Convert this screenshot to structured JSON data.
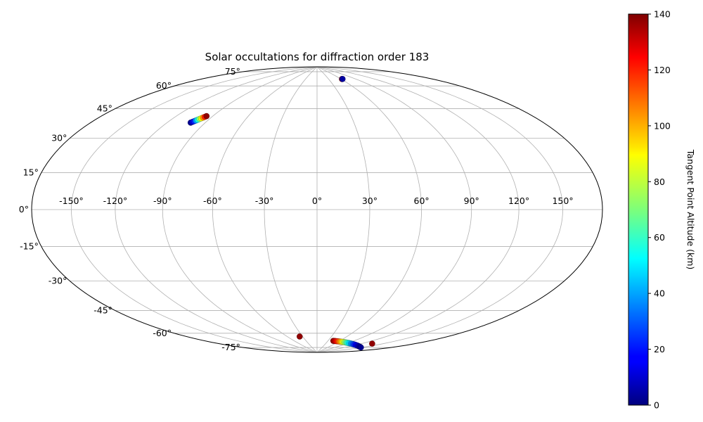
{
  "chart_data": {
    "type": "scatter",
    "projection": "hammer",
    "title": "Solar occultations for diffraction order 183",
    "lon_ticks": [
      -150,
      -120,
      -90,
      -60,
      -30,
      0,
      30,
      60,
      90,
      120,
      150
    ],
    "lon_tick_labels": [
      "-150°",
      "-120°",
      "-90°",
      "-60°",
      "-30°",
      "0°",
      "30°",
      "60°",
      "90°",
      "120°",
      "150°"
    ],
    "lat_ticks": [
      -75,
      -60,
      -45,
      -30,
      -15,
      0,
      15,
      30,
      45,
      60,
      75
    ],
    "lat_tick_labels": [
      "-75°",
      "-60°",
      "-45°",
      "-30°",
      "-15°",
      "0°",
      "15°",
      "30°",
      "45°",
      "60°",
      "75°"
    ],
    "grid": true,
    "colorbar": {
      "label": "Tangent Point Altitude (km)",
      "colormap": "jet",
      "range": [
        0,
        140
      ],
      "ticks": [
        0,
        20,
        40,
        60,
        80,
        100,
        120,
        140
      ],
      "tick_labels": [
        "0",
        "20",
        "40",
        "60",
        "80",
        "100",
        "120",
        "140"
      ],
      "placement": "right"
    },
    "series": [
      {
        "lon": [
          -101.5,
          -100.8,
          -100.1,
          -99.4,
          -98.7,
          -98.0,
          -97.3,
          -96.6,
          -95.9,
          -95.2
        ],
        "lat": [
          46.8,
          47.3,
          47.8,
          48.3,
          48.8,
          49.3,
          49.8,
          50.3,
          50.8,
          51.3
        ],
        "alt": [
          2,
          10,
          22,
          38,
          55,
          72,
          88,
          104,
          120,
          138
        ]
      },
      {
        "lon": [
          62.0,
          63.5
        ],
        "lat": [
          79.5,
          79.5
        ],
        "alt": [
          138,
          4
        ]
      },
      {
        "lon": [
          -36.0
        ],
        "lat": [
          -77.5
        ],
        "alt": [
          138
        ]
      },
      {
        "lon": [
          136.0
        ],
        "lat": [
          -77.5
        ],
        "alt": [
          138
        ]
      },
      {
        "lon": [
          44,
          48,
          52,
          56,
          60,
          64,
          68,
          72,
          76,
          80,
          84,
          88,
          92,
          96,
          100,
          104,
          108,
          112,
          116,
          120,
          124,
          128,
          132,
          136,
          140,
          144,
          148
        ],
        "lat": [
          -80.6,
          -80.6,
          -80.6,
          -80.6,
          -80.6,
          -80.6,
          -80.6,
          -80.6,
          -80.6,
          -80.6,
          -80.6,
          -80.6,
          -80.6,
          -80.6,
          -80.6,
          -80.6,
          -80.6,
          -80.6,
          -80.6,
          -80.6,
          -80.6,
          -80.6,
          -80.6,
          -80.6,
          -80.6,
          -80.6,
          -80.6
        ],
        "alt": [
          138,
          133,
          127,
          120,
          112,
          104,
          96,
          88,
          80,
          72,
          65,
          58,
          52,
          46,
          40,
          35,
          30,
          26,
          22,
          18,
          15,
          12,
          9,
          7,
          5,
          3,
          2
        ]
      }
    ]
  }
}
